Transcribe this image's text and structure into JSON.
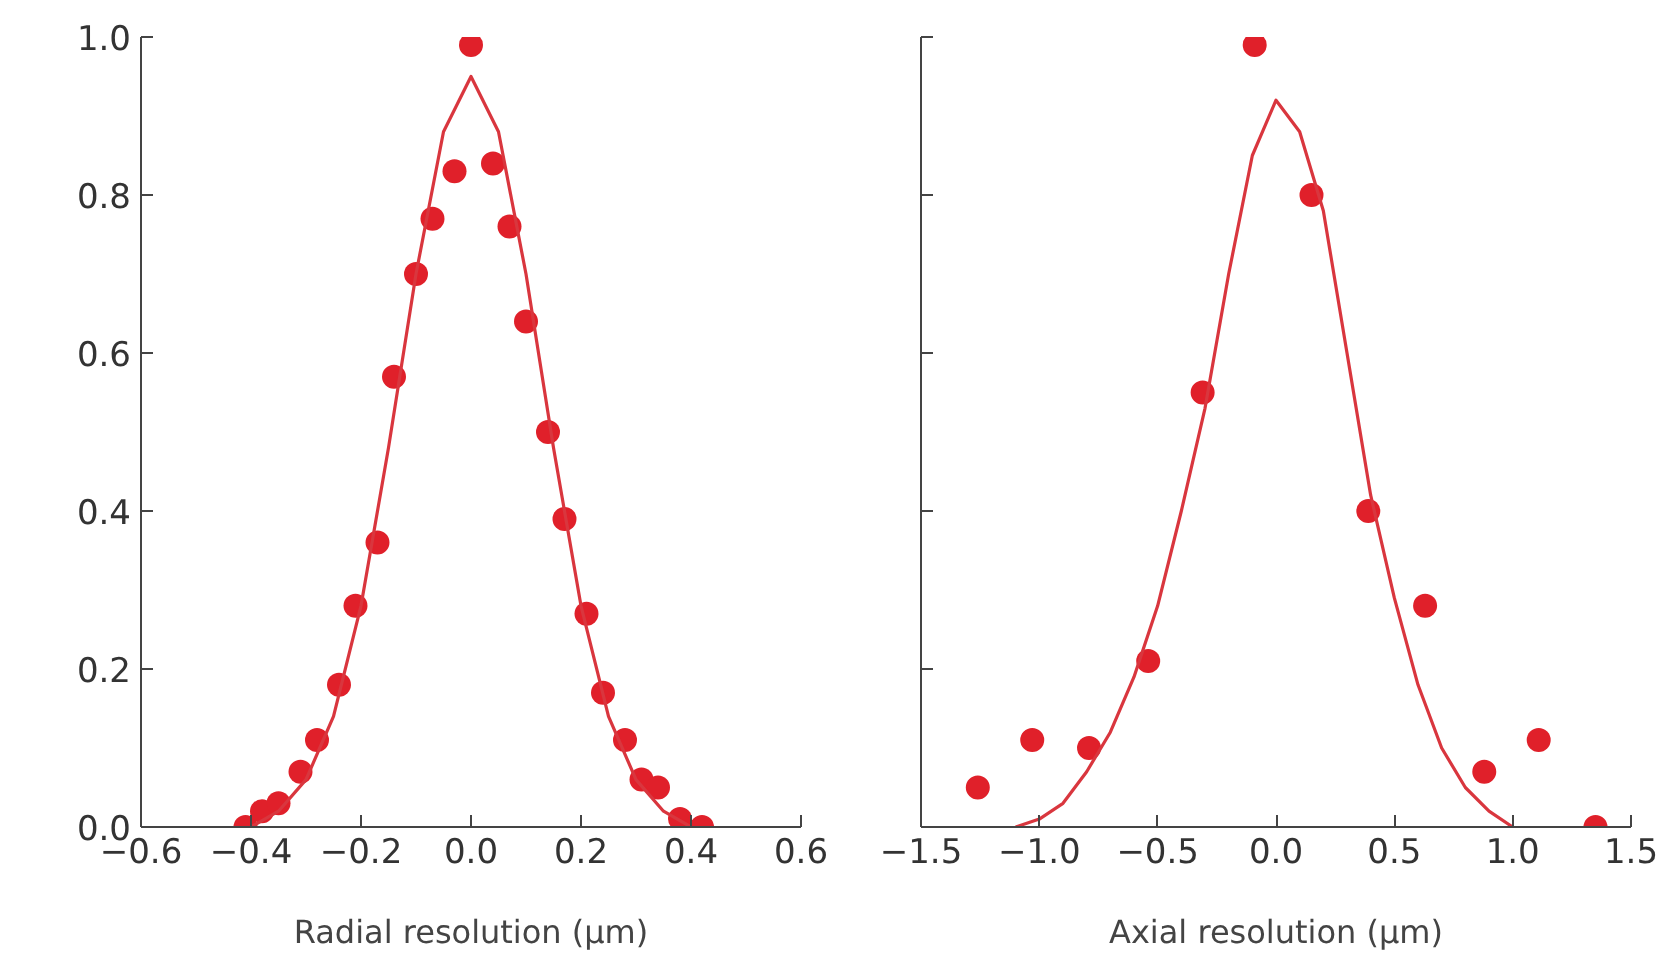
{
  "chart_data": [
    {
      "type": "scatter",
      "xlabel": "Radial resolution (µm)",
      "xlim": [
        -0.6,
        0.6
      ],
      "xticks": [
        {
          "value": -0.6,
          "label": "−0.6"
        },
        {
          "value": -0.4,
          "label": "−0.4"
        },
        {
          "value": -0.2,
          "label": "−0.2"
        },
        {
          "value": 0,
          "label": "0.0"
        },
        {
          "value": 0.2,
          "label": "0.2"
        },
        {
          "value": 0.4,
          "label": "0.4"
        },
        {
          "value": 0.6,
          "label": "0.6"
        }
      ],
      "ylim": [
        0,
        1
      ],
      "yticks": [
        {
          "value": 0,
          "label": "0.0"
        },
        {
          "value": 0.2,
          "label": "0.2"
        },
        {
          "value": 0.4,
          "label": "0.4"
        },
        {
          "value": 0.6,
          "label": "0.6"
        },
        {
          "value": 0.8,
          "label": "0.8"
        },
        {
          "value": 1,
          "label": "1.0"
        }
      ],
      "marker": "circle",
      "series": [
        {
          "color": "#e0202a",
          "x": [
            -0.41,
            -0.38,
            -0.35,
            -0.31,
            -0.28,
            -0.24,
            -0.21,
            -0.17,
            -0.14,
            -0.1,
            -0.07,
            -0.03,
            0.0,
            0.04,
            0.07,
            0.1,
            0.14,
            0.17,
            0.21,
            0.24,
            0.28,
            0.31,
            0.34,
            0.38,
            0.42
          ],
          "values": [
            0.0,
            0.02,
            0.03,
            0.07,
            0.11,
            0.18,
            0.28,
            0.36,
            0.57,
            0.7,
            0.77,
            0.83,
            0.99,
            0.84,
            0.76,
            0.64,
            0.5,
            0.39,
            0.27,
            0.17,
            0.11,
            0.06,
            0.05,
            0.01,
            0.0
          ]
        },
        {
          "type": "line",
          "color": "#d9363e",
          "marker": "none",
          "line_style": "solid",
          "x": [
            -0.4,
            -0.35,
            -0.3,
            -0.25,
            -0.2,
            -0.15,
            -0.1,
            -0.05,
            0.0,
            0.05,
            0.1,
            0.15,
            0.2,
            0.25,
            0.3,
            0.35,
            0.4
          ],
          "values": [
            0.0,
            0.02,
            0.06,
            0.14,
            0.28,
            0.48,
            0.7,
            0.88,
            0.95,
            0.88,
            0.7,
            0.48,
            0.28,
            0.14,
            0.06,
            0.02,
            0.0
          ]
        }
      ]
    },
    {
      "type": "scatter",
      "xlabel": "Axial resolution (µm)",
      "xlim": [
        -1.5,
        1.5
      ],
      "xticks": [
        {
          "value": -1.5,
          "label": "−1.5"
        },
        {
          "value": -1.0,
          "label": "−1.0"
        },
        {
          "value": -0.5,
          "label": "−0.5"
        },
        {
          "value": 0,
          "label": "0.0"
        },
        {
          "value": 0.5,
          "label": "0.5"
        },
        {
          "value": 1,
          "label": "1.0"
        },
        {
          "value": 1.5,
          "label": "1.5"
        }
      ],
      "ylim": [
        0,
        1
      ],
      "yticks": [
        {
          "value": 0,
          "label": null
        },
        {
          "value": 0.2,
          "label": null
        },
        {
          "value": 0.4,
          "label": null
        },
        {
          "value": 0.6,
          "label": null
        },
        {
          "value": 0.8,
          "label": null
        },
        {
          "value": 1.0,
          "label": null
        }
      ],
      "tick_labels": "x",
      "marker": "circle",
      "series": [
        {
          "color": "#e0202a",
          "x": [
            -1.26,
            -1.03,
            -0.79,
            -0.54,
            -0.31,
            -0.09,
            0.15,
            0.39,
            0.63,
            0.88,
            1.11,
            1.35
          ],
          "values": [
            0.05,
            0.11,
            0.1,
            0.21,
            0.55,
            0.99,
            0.8,
            0.4,
            0.28,
            0.07,
            0.11,
            0.0
          ]
        },
        {
          "type": "line",
          "color": "#d9363e",
          "marker": "none",
          "line_style": "solid",
          "x": [
            -1.1,
            -1.0,
            -0.9,
            -0.8,
            -0.7,
            -0.6,
            -0.5,
            -0.4,
            -0.3,
            -0.2,
            -0.1,
            0.0,
            0.1,
            0.2,
            0.3,
            0.4,
            0.5,
            0.6,
            0.7,
            0.8,
            0.9,
            1.0
          ],
          "values": [
            0.0,
            0.01,
            0.03,
            0.07,
            0.12,
            0.19,
            0.28,
            0.4,
            0.53,
            0.7,
            0.85,
            0.92,
            0.88,
            0.78,
            0.6,
            0.42,
            0.29,
            0.18,
            0.1,
            0.05,
            0.02,
            0.0
          ]
        }
      ]
    }
  ]
}
